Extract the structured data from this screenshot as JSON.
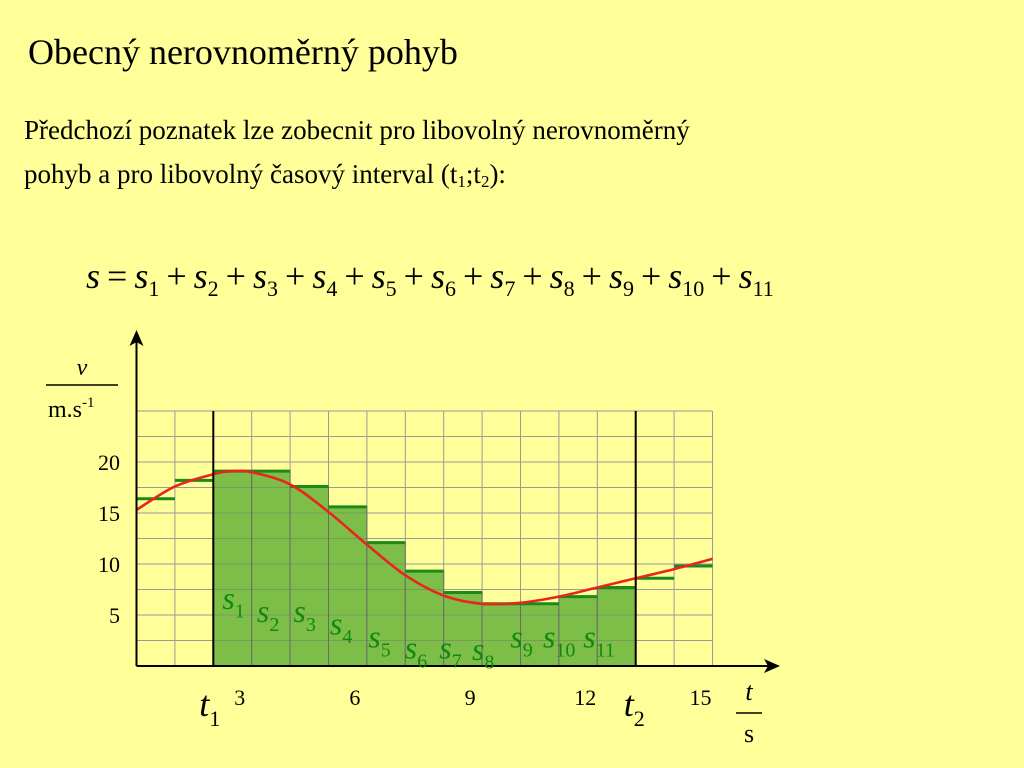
{
  "slide": {
    "title": "Obecný nerovnoměrný pohyb",
    "text_line1": "Předchozí poznatek lze zobecnit pro libovolný nerovnoměrný",
    "text_line2_a": "pohyb a pro libovolný časový interval (t",
    "text_sub1": "1",
    "text_line2_b": ";t",
    "text_sub2": "2",
    "text_line2_c": "):"
  },
  "formula": {
    "lhs": "s",
    "equals": "=",
    "plus": "+",
    "term_letter": "s",
    "terms": [
      "1",
      "2",
      "3",
      "4",
      "5",
      "6",
      "7",
      "8",
      "9",
      "10",
      "11"
    ]
  },
  "colors": {
    "background": "#ffff99",
    "fill": "#7dbe48",
    "step": "#1a8a1a",
    "curve": "#e8251f",
    "grid": "#9a9a9a",
    "label": "#118811"
  },
  "chart_data": {
    "type": "area",
    "x_axis_label": {
      "numerator": "t",
      "denominator": "s"
    },
    "y_axis_label": {
      "numerator": "v",
      "denominator": "m.s",
      "exponent": "-1"
    },
    "x_ticks": [
      "3",
      "6",
      "9",
      "12",
      "15"
    ],
    "x_tick_values": [
      3,
      6,
      9,
      12,
      15
    ],
    "y_ticks": [
      "5",
      "10",
      "15",
      "20"
    ],
    "y_tick_values": [
      5,
      10,
      15,
      20
    ],
    "xlim": [
      0,
      15
    ],
    "ylim": [
      0,
      25
    ],
    "grid": true,
    "interval_markers": [
      {
        "label": "t",
        "sub": "1",
        "x": 2
      },
      {
        "label": "t",
        "sub": "2",
        "x": 13
      }
    ],
    "steps": [
      {
        "x0": 0,
        "x1": 1,
        "v": 16.4
      },
      {
        "x0": 1,
        "x1": 2,
        "v": 18.2
      },
      {
        "x0": 2,
        "x1": 3,
        "v": 19.1
      },
      {
        "x0": 3,
        "x1": 4,
        "v": 19.1
      },
      {
        "x0": 4,
        "x1": 5,
        "v": 17.6
      },
      {
        "x0": 5,
        "x1": 6,
        "v": 15.6
      },
      {
        "x0": 6,
        "x1": 7,
        "v": 12.1
      },
      {
        "x0": 7,
        "x1": 8,
        "v": 9.3
      },
      {
        "x0": 8,
        "x1": 9,
        "v": 7.2
      },
      {
        "x0": 9,
        "x1": 10,
        "v": 6.1
      },
      {
        "x0": 10,
        "x1": 11,
        "v": 6.1
      },
      {
        "x0": 11,
        "x1": 12,
        "v": 6.8
      },
      {
        "x0": 12,
        "x1": 13,
        "v": 7.7
      },
      {
        "x0": 13,
        "x1": 14,
        "v": 8.6
      },
      {
        "x0": 14,
        "x1": 15,
        "v": 9.8
      }
    ],
    "curve": {
      "x": [
        0,
        1,
        2,
        2.5,
        3,
        4,
        5,
        6,
        7,
        8,
        9,
        10,
        11,
        12,
        13,
        14,
        15
      ],
      "v": [
        15.3,
        17.6,
        18.8,
        19.1,
        19.0,
        17.8,
        15.1,
        11.9,
        8.9,
        6.9,
        6.1,
        6.2,
        6.8,
        7.7,
        8.6,
        9.5,
        10.5
      ]
    },
    "area_labels": [
      {
        "x": 2.6,
        "v": 6.2,
        "letter": "s",
        "sub": "1"
      },
      {
        "x": 3.5,
        "v": 4.9,
        "letter": "s",
        "sub": "2"
      },
      {
        "x": 4.45,
        "v": 4.9,
        "letter": "s",
        "sub": "3"
      },
      {
        "x": 5.4,
        "v": 3.7,
        "letter": "s",
        "sub": "4"
      },
      {
        "x": 6.4,
        "v": 2.4,
        "letter": "s",
        "sub": "5"
      },
      {
        "x": 7.35,
        "v": 1.3,
        "letter": "s",
        "sub": "6"
      },
      {
        "x": 8.25,
        "v": 1.3,
        "letter": "s",
        "sub": "7"
      },
      {
        "x": 9.1,
        "v": 1.2,
        "letter": "s",
        "sub": "8"
      },
      {
        "x": 10.1,
        "v": 2.4,
        "letter": "s",
        "sub": "9"
      },
      {
        "x": 10.95,
        "v": 2.4,
        "letter": "s",
        "sub": "10"
      },
      {
        "x": 12.0,
        "v": 2.4,
        "letter": "s",
        "sub": "11"
      }
    ]
  }
}
